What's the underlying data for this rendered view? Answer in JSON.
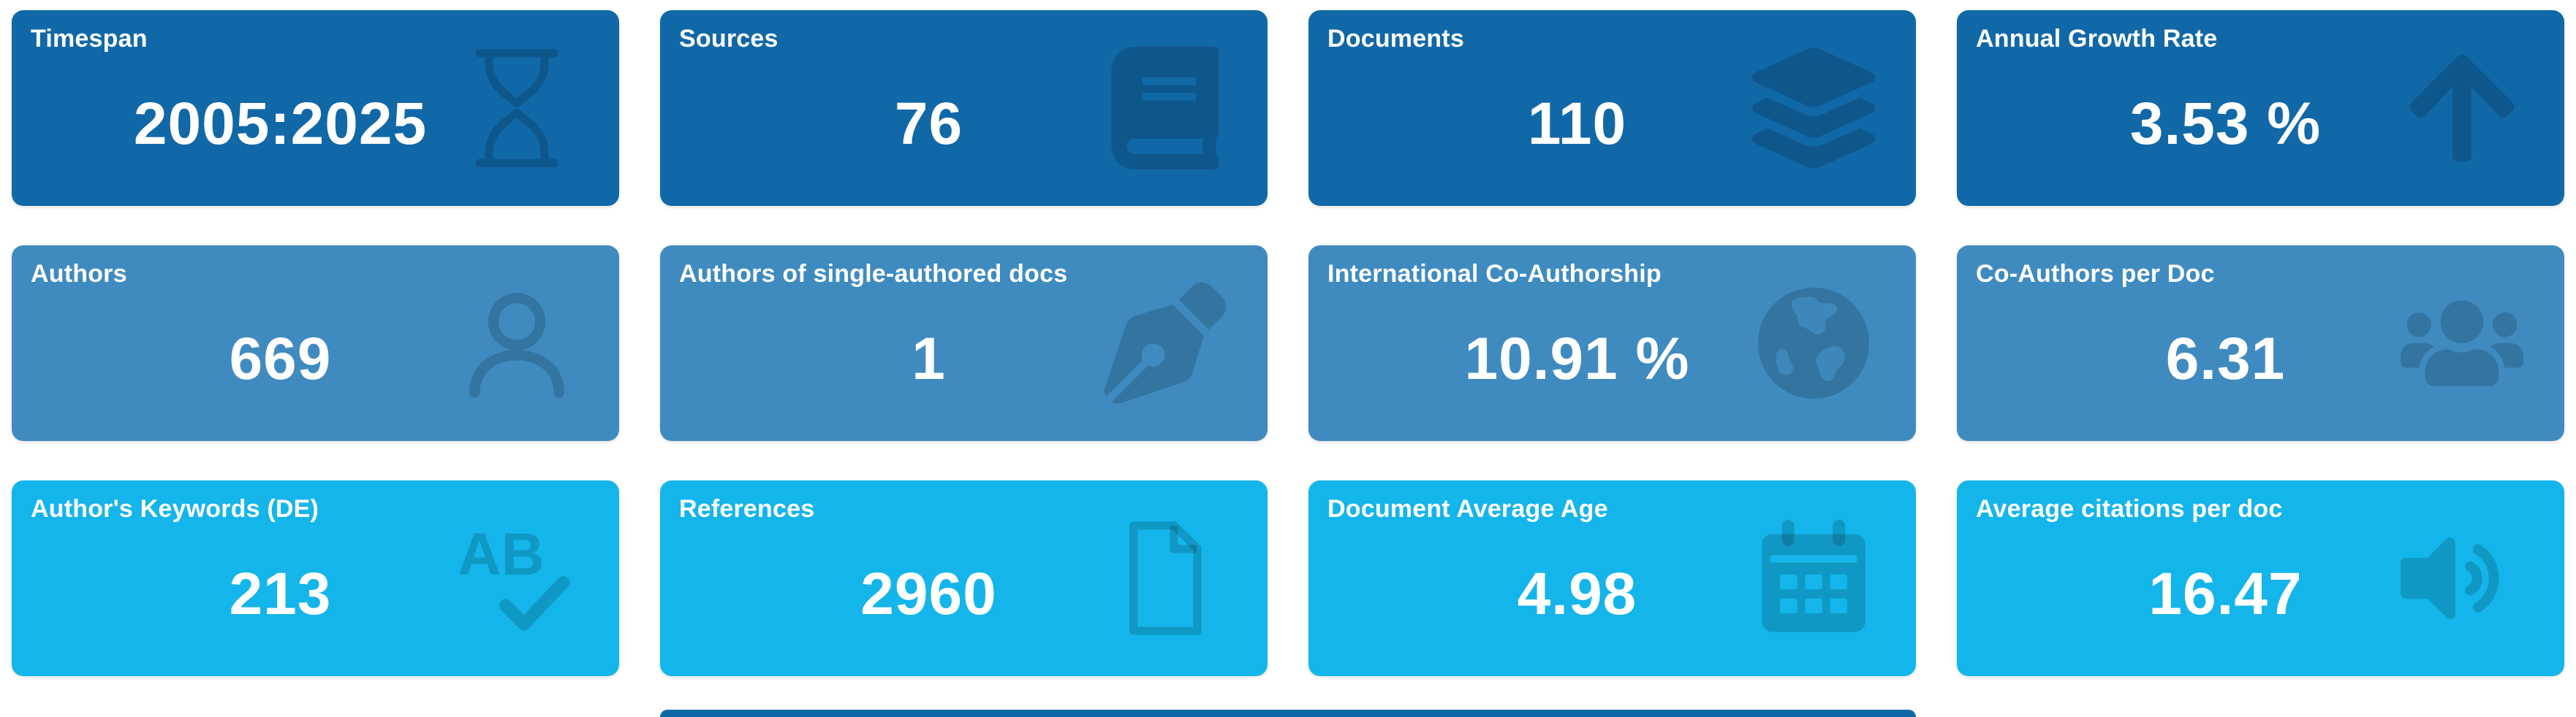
{
  "colors": {
    "row_dark": "#1168a7",
    "row_mid": "#3f8bc0",
    "row_light": "#14b5ea",
    "icon_overlay": "rgba(0,0,0,0.16)",
    "text": "#ffffff",
    "page_background": "#ffffff"
  },
  "cards": [
    {
      "title": "Timespan",
      "value": "2005:2025",
      "icon": "hourglass-icon",
      "tone": "row_dark"
    },
    {
      "title": "Sources",
      "value": "76",
      "icon": "book-icon",
      "tone": "row_dark"
    },
    {
      "title": "Documents",
      "value": "110",
      "icon": "layers-icon",
      "tone": "row_dark"
    },
    {
      "title": "Annual Growth Rate",
      "value": "3.53 %",
      "icon": "arrow-up-icon",
      "tone": "row_dark"
    },
    {
      "title": "Authors",
      "value": "669",
      "icon": "user-icon",
      "tone": "row_mid"
    },
    {
      "title": "Authors of single-authored docs",
      "value": "1",
      "icon": "pen-icon",
      "tone": "row_mid"
    },
    {
      "title": "International Co-Authorship",
      "value": "10.91 %",
      "icon": "globe-icon",
      "tone": "row_mid"
    },
    {
      "title": "Co-Authors per Doc",
      "value": "6.31",
      "icon": "users-icon",
      "tone": "row_mid"
    },
    {
      "title": "Author's Keywords (DE)",
      "value": "213",
      "icon": "spellcheck-icon",
      "tone": "row_light"
    },
    {
      "title": "References",
      "value": "2960",
      "icon": "file-icon",
      "tone": "row_light"
    },
    {
      "title": "Document Average Age",
      "value": "4.98",
      "icon": "calendar-icon",
      "tone": "row_light"
    },
    {
      "title": "Average citations per doc",
      "value": "16.47",
      "icon": "volume-icon",
      "tone": "row_light"
    }
  ],
  "partial_next_row": {
    "tone": "row_dark"
  }
}
